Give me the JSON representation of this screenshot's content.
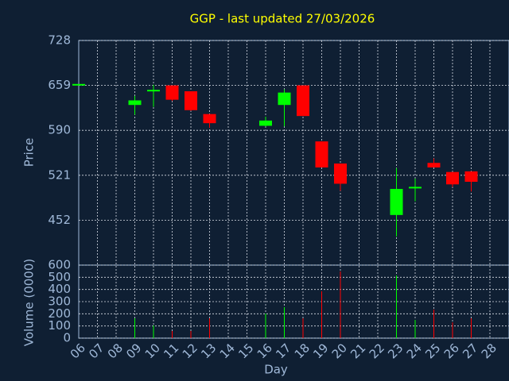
{
  "chart_data": {
    "type": "candlestick",
    "title": "GGP - last updated 27/03/2026",
    "x_label": "Day",
    "y_label": "Price",
    "y2_label": "Volume (0000)",
    "categories": [
      "06",
      "07",
      "08",
      "09",
      "10",
      "11",
      "12",
      "13",
      "14",
      "15",
      "16",
      "17",
      "18",
      "19",
      "20",
      "21",
      "22",
      "23",
      "24",
      "25",
      "26",
      "27",
      "28"
    ],
    "open": [
      659,
      null,
      null,
      629,
      649,
      659,
      650,
      615,
      null,
      null,
      597,
      629,
      659,
      573,
      539,
      null,
      null,
      460,
      501,
      540,
      526,
      527,
      null
    ],
    "high": [
      660,
      null,
      null,
      643,
      660,
      659,
      650,
      615,
      null,
      null,
      611,
      653,
      659,
      573,
      539,
      null,
      null,
      532,
      516,
      547,
      526,
      527,
      null
    ],
    "low": [
      659,
      null,
      null,
      614,
      626,
      635,
      620,
      594,
      null,
      null,
      596,
      596,
      612,
      533,
      497,
      null,
      null,
      427,
      481,
      533,
      503,
      496,
      null
    ],
    "close": [
      660,
      null,
      null,
      636,
      651,
      637,
      621,
      601,
      null,
      null,
      605,
      648,
      612,
      533,
      508,
      null,
      null,
      500,
      502,
      533,
      507,
      511,
      null
    ],
    "volume": [
      0,
      null,
      null,
      163,
      104,
      59,
      59,
      163,
      null,
      null,
      202,
      254,
      163,
      385,
      548,
      null,
      null,
      515,
      150,
      235,
      130,
      163,
      null
    ],
    "up_color": "#00ff00",
    "down_color": "#ff0000",
    "title_color": "#ffff00",
    "ylim": [
      383,
      728
    ],
    "yticks": [
      452,
      521,
      590,
      659,
      728
    ],
    "y2lim": [
      0,
      600
    ],
    "y2ticks": [
      0,
      100,
      200,
      300,
      400,
      500,
      600
    ],
    "grid": true
  }
}
